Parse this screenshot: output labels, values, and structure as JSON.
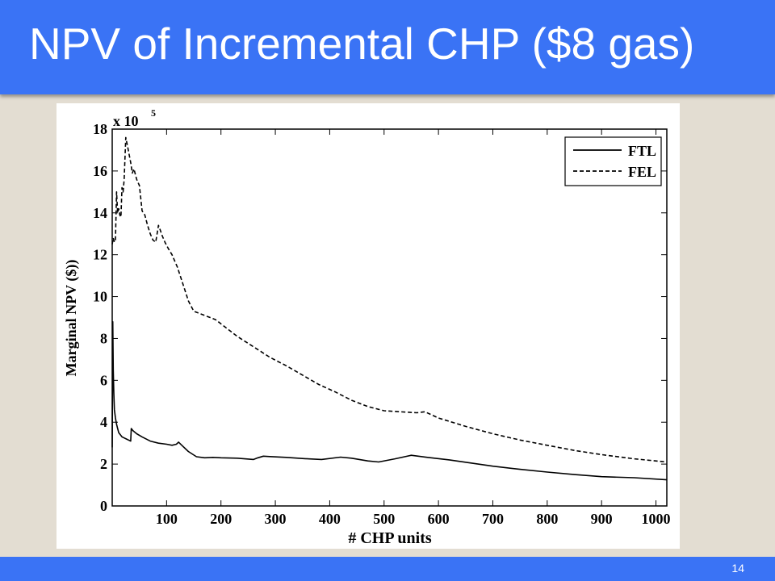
{
  "slide": {
    "title": "NPV of Incremental CHP ($8 gas)",
    "page_number": "14",
    "colors": {
      "accent": "#3a73f5",
      "background": "#e3ddd2"
    }
  },
  "chart_data": {
    "type": "line",
    "title": "",
    "xlabel": "# CHP units",
    "ylabel": "Marginal NPV ($))",
    "y_multiplier_label": "x 10",
    "y_multiplier_exponent": "5",
    "xlim": [
      0,
      1020
    ],
    "ylim": [
      0,
      18
    ],
    "xticks": [
      100,
      200,
      300,
      400,
      500,
      600,
      700,
      800,
      900,
      1000
    ],
    "yticks": [
      0,
      2,
      4,
      6,
      8,
      10,
      12,
      14,
      16,
      18
    ],
    "grid": false,
    "legend_position": "top-right",
    "series": [
      {
        "name": "FTL",
        "style": "solid",
        "x": [
          0,
          1,
          2,
          3,
          4,
          6,
          8,
          10,
          12,
          15,
          18,
          22,
          26,
          30,
          34,
          35,
          38,
          45,
          55,
          70,
          85,
          100,
          110,
          118,
          122,
          128,
          140,
          155,
          170,
          185,
          200,
          230,
          260,
          268,
          278,
          290,
          320,
          355,
          385,
          420,
          440,
          470,
          490,
          520,
          550,
          580,
          620,
          660,
          700,
          750,
          800,
          850,
          900,
          960,
          1020
        ],
        "y": [
          2.8,
          8.8,
          6.5,
          5.4,
          4.6,
          4.2,
          3.9,
          3.7,
          3.5,
          3.4,
          3.3,
          3.25,
          3.2,
          3.15,
          3.1,
          3.7,
          3.6,
          3.45,
          3.3,
          3.1,
          3.0,
          2.95,
          2.9,
          2.95,
          3.05,
          2.9,
          2.6,
          2.35,
          2.3,
          2.32,
          2.3,
          2.28,
          2.22,
          2.3,
          2.38,
          2.36,
          2.32,
          2.26,
          2.22,
          2.33,
          2.28,
          2.15,
          2.1,
          2.25,
          2.42,
          2.32,
          2.2,
          2.05,
          1.9,
          1.75,
          1.62,
          1.5,
          1.4,
          1.35,
          1.25
        ]
      },
      {
        "name": "FEL",
        "style": "dashed",
        "x": [
          0,
          2,
          4,
          6,
          8,
          10,
          12,
          14,
          16,
          18,
          20,
          22,
          25,
          28,
          31,
          34,
          37,
          40,
          45,
          50,
          55,
          60,
          65,
          70,
          75,
          80,
          85,
          88,
          92,
          97,
          103,
          110,
          120,
          130,
          140,
          150,
          160,
          175,
          190,
          200,
          230,
          260,
          290,
          320,
          350,
          380,
          410,
          440,
          470,
          500,
          530,
          560,
          575,
          600,
          650,
          700,
          750,
          800,
          850,
          900,
          960,
          1020
        ],
        "y": [
          12.5,
          12.8,
          12.6,
          12.7,
          15.0,
          14.0,
          14.2,
          13.9,
          13.8,
          15.2,
          15.0,
          15.6,
          17.6,
          17.2,
          16.8,
          16.4,
          15.9,
          16.1,
          15.6,
          15.3,
          14.1,
          13.9,
          13.4,
          13.0,
          12.7,
          12.6,
          13.4,
          13.2,
          12.9,
          12.6,
          12.3,
          12.0,
          11.4,
          10.6,
          9.8,
          9.3,
          9.2,
          9.05,
          8.9,
          8.7,
          8.1,
          7.6,
          7.1,
          6.7,
          6.25,
          5.8,
          5.45,
          5.05,
          4.75,
          4.55,
          4.5,
          4.45,
          4.5,
          4.2,
          3.8,
          3.45,
          3.15,
          2.9,
          2.65,
          2.45,
          2.25,
          2.1
        ]
      }
    ]
  }
}
